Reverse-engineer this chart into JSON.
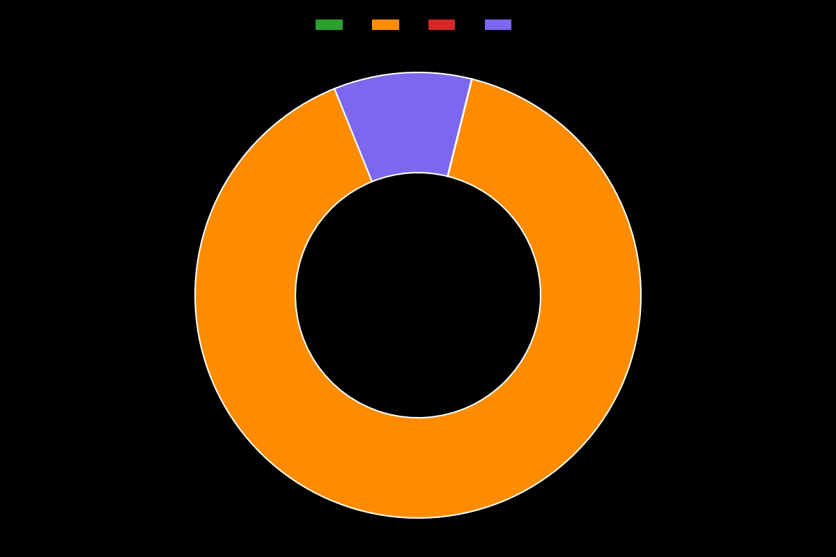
{
  "values": [
    90.0,
    10.0,
    0.001,
    0.001
  ],
  "colors": [
    "#ff8c00",
    "#7b68ee",
    "#2ca02c",
    "#d62728"
  ],
  "background_color": "#000000",
  "wedge_edge_color": "#ffffff",
  "wedge_edge_width": 1.5,
  "donut_width": 0.45,
  "startangle": 76,
  "legend_colors": [
    "#2ca02c",
    "#ff8c00",
    "#d62728",
    "#7b68ee"
  ],
  "legend_labels": [
    "",
    "",
    "",
    ""
  ],
  "figsize": [
    12,
    8
  ],
  "dpi": 100
}
